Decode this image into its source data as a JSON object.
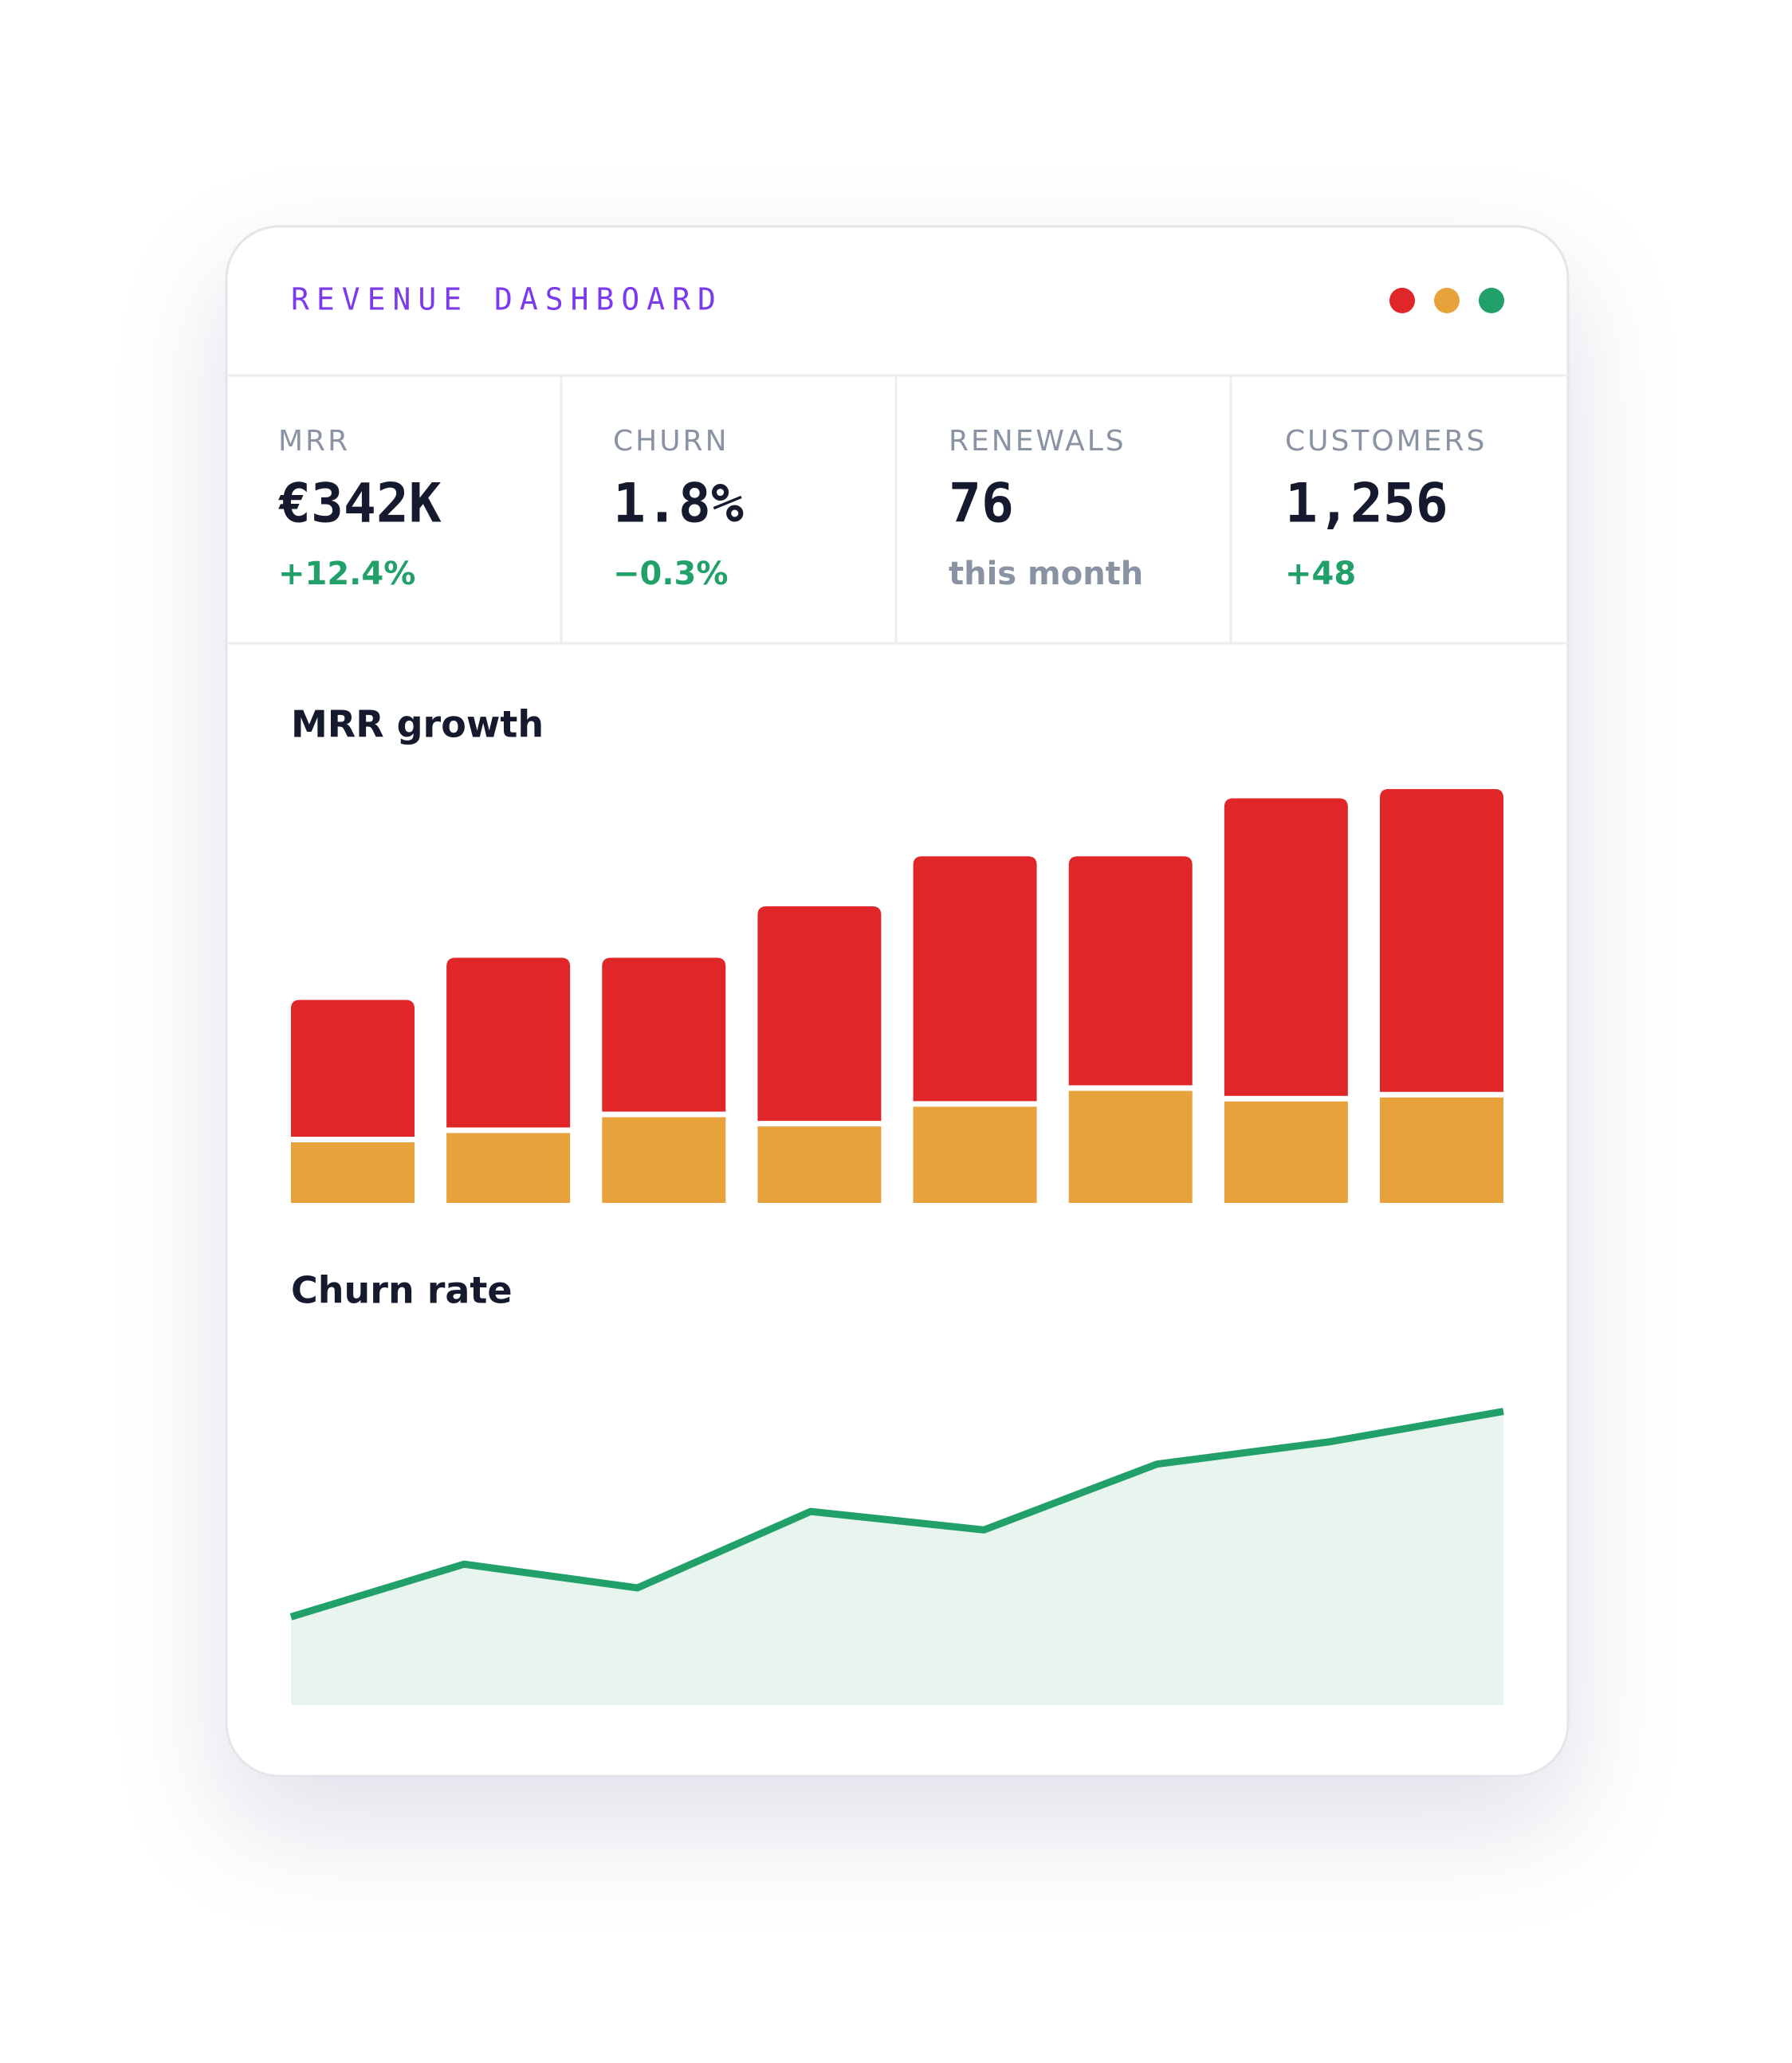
{
  "header": {
    "title": "REVENUE DASHBOARD",
    "dots": [
      "#e02628",
      "#e8a23b",
      "#21a06a"
    ]
  },
  "stats": [
    {
      "label": "MRR",
      "value": "€342K",
      "change": "+12.4%",
      "color": "#21a06a"
    },
    {
      "label": "CHURN",
      "value": "1.8%",
      "change": "−0.3%",
      "color": "#21a06a"
    },
    {
      "label": "RENEWALS",
      "value": "76",
      "change": "this month",
      "color": "#8a93a3"
    },
    {
      "label": "CUSTOMERS",
      "value": "1,256",
      "change": "+48",
      "color": "#21a06a"
    }
  ],
  "chart_data": [
    {
      "type": "bar",
      "title": "MRR growth",
      "stacked": true,
      "ylim": [
        0,
        320
      ],
      "series": [
        {
          "color": "#e8a23b",
          "values": [
            46,
            53,
            65,
            58,
            73,
            85,
            77,
            80
          ]
        },
        {
          "color": "#e02628",
          "values": [
            108,
            133,
            121,
            167,
            190,
            178,
            230,
            234
          ]
        }
      ]
    },
    {
      "type": "area",
      "title": "Churn rate",
      "color": "#21a06a",
      "fill": "#e8f5ef",
      "ylim": [
        0,
        250
      ],
      "values": [
        67,
        107,
        89,
        147,
        133,
        183,
        200,
        223
      ]
    }
  ]
}
